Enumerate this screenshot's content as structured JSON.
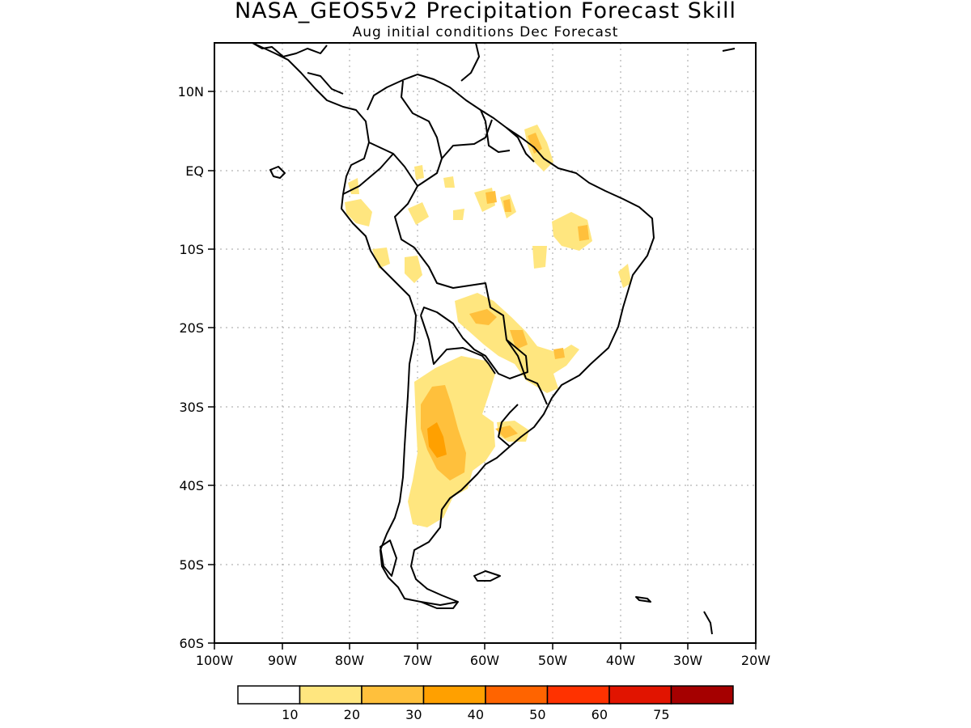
{
  "title": "NASA_GEOS5v2 Precipitation Forecast Skill",
  "subtitle": "Aug initial conditions   Dec Forecast",
  "lon_ticks": [
    "100W",
    "90W",
    "80W",
    "70W",
    "60W",
    "50W",
    "40W",
    "30W",
    "20W"
  ],
  "lat_ticks": [
    "10N",
    "EQ",
    "10S",
    "20S",
    "30S",
    "40S",
    "50S",
    "60S"
  ],
  "colorbar": {
    "colors": [
      "#ffffff",
      "#ffe67f",
      "#ffc03c",
      "#ffa000",
      "#ff6400",
      "#ff3200",
      "#e11400",
      "#a50000"
    ],
    "labels": [
      "10",
      "20",
      "30",
      "40",
      "50",
      "60",
      "75"
    ]
  },
  "map_extent": {
    "lon_min": -100,
    "lon_max": -20,
    "lat_min": -60,
    "lat_max": 16
  }
}
